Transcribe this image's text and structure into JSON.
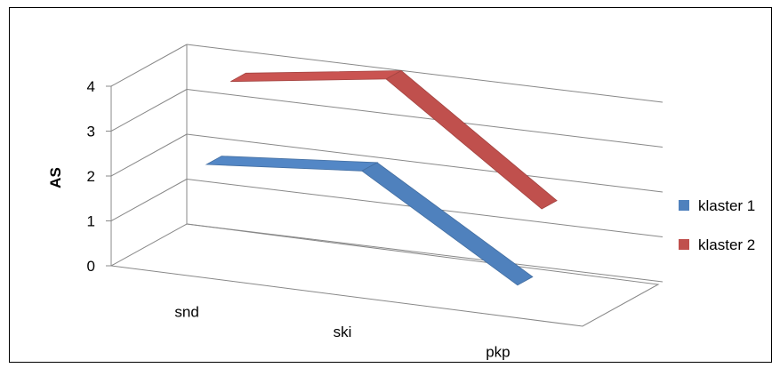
{
  "chart_data": {
    "type": "line",
    "style": "3d",
    "categories": [
      "snd",
      "ski",
      "pkp"
    ],
    "series": [
      {
        "name": "klaster 1",
        "values": [
          2.3,
          2.6,
          0.5
        ],
        "color": "#4f81bd"
      },
      {
        "name": "klaster 2",
        "values": [
          3.85,
          4.35,
          1.9
        ],
        "color": "#c0504d"
      }
    ],
    "ylabel": "AS",
    "xlabel": "",
    "ylim": [
      0,
      4
    ],
    "yticks": [
      0,
      1,
      2,
      3,
      4
    ],
    "grid": true,
    "legend_position": "right"
  }
}
